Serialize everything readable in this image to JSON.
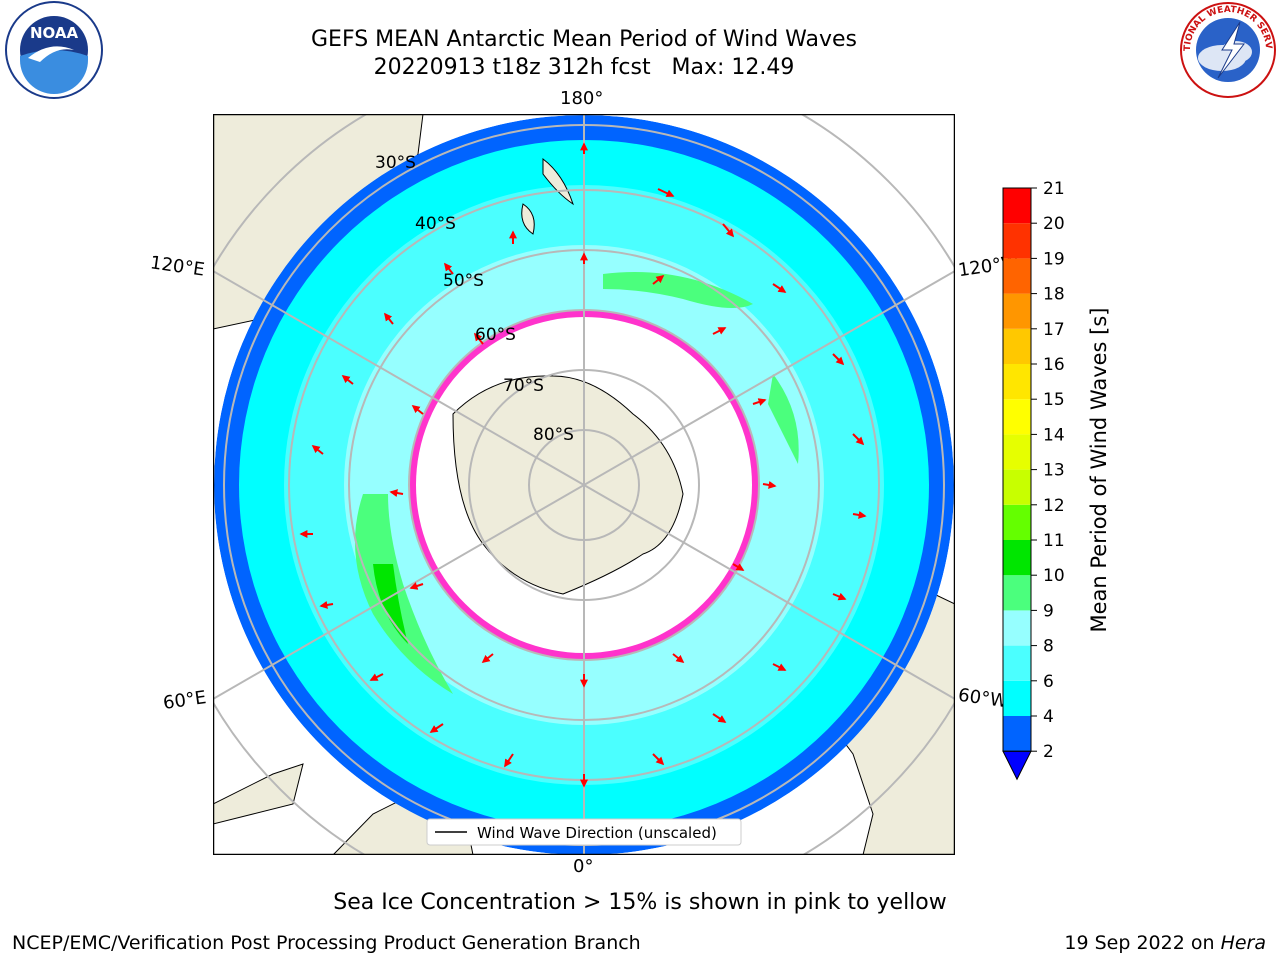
{
  "header": {
    "title_line1": "GEFS MEAN Antarctic Mean Period of Wind Waves",
    "title_line2": "20220913 t18z 312h fcst   Max: 12.49"
  },
  "logos": {
    "left": {
      "name": "noaa-logo",
      "text": "NOAA"
    },
    "right": {
      "name": "nws-logo",
      "text": "NATIONAL WEATHER SERVICE"
    }
  },
  "map": {
    "lon_labels": {
      "top": "180°",
      "bottom": "0°",
      "upper_left": "120°E",
      "upper_right": "120°W",
      "lower_left": "60°E",
      "lower_right": "60°W"
    },
    "lat_labels": [
      "30°S",
      "40°S",
      "50°S",
      "60°S",
      "70°S",
      "80°S"
    ],
    "legend_label": "Wind Wave Direction (unscaled)"
  },
  "colorbar": {
    "label": "Mean Period of Wind Waves [s]",
    "ticks": [
      "2",
      "4",
      "6",
      "8",
      "9",
      "10",
      "11",
      "12",
      "13",
      "14",
      "15",
      "16",
      "17",
      "18",
      "19",
      "20",
      "21"
    ],
    "colors": [
      "#0064ff",
      "#00ffff",
      "#4bffff",
      "#96ffff",
      "#4bff7d",
      "#00e600",
      "#64ff00",
      "#c8ff00",
      "#e6ff00",
      "#ffff00",
      "#ffe600",
      "#ffc800",
      "#ff9600",
      "#ff6400",
      "#ff3200",
      "#ff0000"
    ],
    "under_color": "#0000ff"
  },
  "footer": {
    "note": "Sea Ice Concentration > 15% is shown in pink to yellow",
    "credit": "NCEP/EMC/Verification Post Processing Product Generation Branch",
    "date": "19 Sep 2022 on ",
    "host": "Hera"
  },
  "colors": {
    "land": "#eeecdb",
    "grid": "#b8b8b8",
    "arrow": "#ff0000",
    "ice_edge": "#ff33cc"
  }
}
